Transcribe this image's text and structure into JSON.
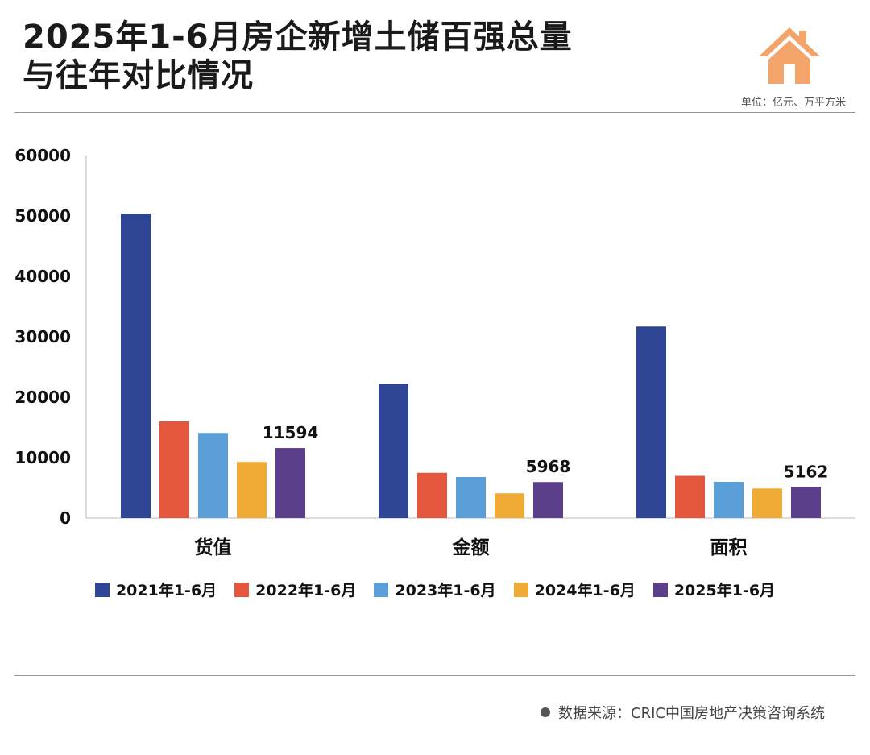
{
  "title_line1": "2025年1-6月房企新增土储百强总量",
  "title_line2": "与往年对比情况",
  "unit_label": "单位：亿元、万平方米",
  "source_label": "数据来源：CRIC中国房地产决策咨询系统",
  "icons": {
    "logo": "house-icon",
    "source": "dot-icon"
  },
  "colors": {
    "logo": "#f2a46a",
    "series": [
      "#2e4594",
      "#e5573d",
      "#5b9fd8",
      "#f0ab37",
      "#5c3f8a"
    ]
  },
  "chart_data": {
    "type": "bar",
    "title": "",
    "xlabel": "",
    "ylabel": "",
    "categories": [
      "货值",
      "金额",
      "面积"
    ],
    "ylim": [
      0,
      60000
    ],
    "yticks": [
      0,
      10000,
      20000,
      30000,
      40000,
      50000,
      60000
    ],
    "grid": false,
    "legend_position": "bottom",
    "series": [
      {
        "name": "2021年1-6月",
        "values": [
          50400,
          22200,
          31700
        ]
      },
      {
        "name": "2022年1-6月",
        "values": [
          16000,
          7500,
          7000
        ]
      },
      {
        "name": "2023年1-6月",
        "values": [
          14100,
          6800,
          6000
        ]
      },
      {
        "name": "2024年1-6月",
        "values": [
          9300,
          4100,
          4900
        ]
      },
      {
        "name": "2025年1-6月",
        "values": [
          11594,
          5968,
          5162
        ],
        "labels": [
          "11594",
          "5968",
          "5162"
        ]
      }
    ]
  }
}
